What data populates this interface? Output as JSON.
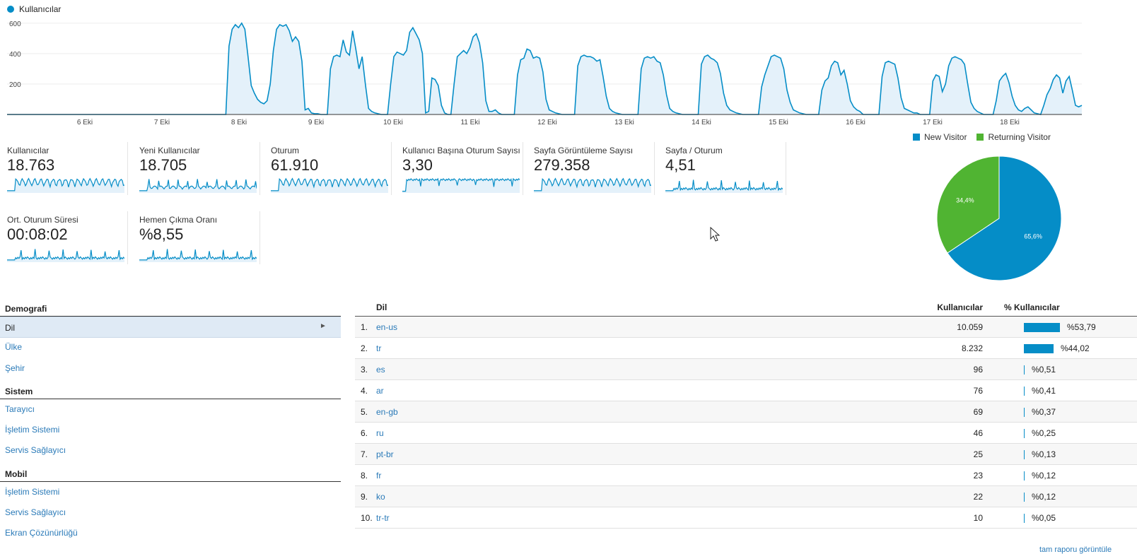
{
  "main_chart": {
    "legend_label": "Kullanıcılar",
    "y_ticks": [
      "600",
      "400",
      "200"
    ],
    "x_ticks": [
      "6 Eki",
      "7 Eki",
      "8 Eki",
      "9 Eki",
      "10 Eki",
      "11 Eki",
      "12 Eki",
      "13 Eki",
      "14 Eki",
      "15 Eki",
      "16 Eki",
      "17 Eki",
      "18 Eki"
    ],
    "series_color": "#058dc7",
    "fill_color": "#e4f1fa"
  },
  "chart_data": {
    "type": "area",
    "xlabel": "",
    "ylabel": "",
    "ylim": [
      0,
      650
    ],
    "series": [
      {
        "values": [
          0,
          0,
          0,
          0,
          0,
          0,
          0,
          0,
          0,
          0,
          0,
          0,
          0,
          0,
          0,
          0,
          0,
          0,
          0,
          0,
          0,
          0,
          0,
          0,
          0,
          0,
          0,
          0,
          0,
          0,
          0,
          0,
          0,
          0,
          0,
          0,
          0,
          0,
          0,
          0,
          0,
          0,
          0,
          0,
          0,
          0,
          0,
          0,
          0,
          0,
          0,
          0,
          0,
          0,
          0,
          0,
          0,
          0,
          0,
          0,
          0,
          0,
          0,
          0,
          0,
          0,
          0,
          0,
          0,
          0,
          450,
          560,
          590,
          570,
          600,
          560,
          380,
          190,
          140,
          100,
          80,
          70,
          90,
          200,
          420,
          560,
          590,
          580,
          590,
          550,
          480,
          510,
          480,
          350,
          30,
          40,
          10,
          5,
          5,
          0,
          0,
          0,
          300,
          380,
          390,
          380,
          490,
          410,
          390,
          550,
          430,
          300,
          380,
          200,
          40,
          20,
          10,
          5,
          0,
          0,
          0,
          200,
          380,
          410,
          400,
          390,
          420,
          540,
          570,
          530,
          490,
          400,
          10,
          20,
          240,
          230,
          190,
          60,
          10,
          0,
          0,
          200,
          380,
          400,
          420,
          400,
          440,
          510,
          530,
          470,
          340,
          90,
          20,
          20,
          30,
          10,
          0,
          0,
          0,
          0,
          0,
          260,
          360,
          370,
          430,
          420,
          370,
          380,
          370,
          280,
          100,
          30,
          20,
          10,
          5,
          0,
          0,
          0,
          0,
          0,
          320,
          380,
          390,
          380,
          380,
          370,
          350,
          360,
          250,
          120,
          40,
          20,
          10,
          5,
          0,
          0,
          0,
          0,
          0,
          0,
          300,
          370,
          380,
          370,
          380,
          350,
          340,
          260,
          130,
          40,
          20,
          10,
          5,
          0,
          0,
          0,
          0,
          0,
          0,
          330,
          380,
          390,
          370,
          360,
          340,
          270,
          140,
          60,
          30,
          20,
          10,
          5,
          0,
          0,
          0,
          0,
          0,
          0,
          180,
          260,
          320,
          380,
          390,
          380,
          370,
          300,
          160,
          80,
          30,
          20,
          10,
          5,
          0,
          0,
          0,
          0,
          0,
          160,
          220,
          240,
          320,
          350,
          340,
          260,
          290,
          200,
          90,
          50,
          30,
          20,
          0,
          0,
          0,
          0,
          0,
          0,
          250,
          340,
          350,
          340,
          330,
          240,
          110,
          40,
          30,
          20,
          10,
          10,
          0,
          0,
          0,
          0,
          220,
          260,
          250,
          150,
          200,
          320,
          370,
          380,
          370,
          360,
          330,
          200,
          80,
          40,
          20,
          10,
          0,
          0,
          0,
          0,
          90,
          220,
          250,
          270,
          210,
          120,
          60,
          30,
          20,
          40,
          50,
          30,
          10,
          5,
          0,
          60,
          130,
          170,
          230,
          260,
          240,
          140,
          220,
          250,
          160,
          60,
          50,
          60
        ]
      }
    ]
  },
  "metrics": [
    {
      "label": "Kullanıcılar",
      "value": "18.763"
    },
    {
      "label": "Yeni Kullanıcılar",
      "value": "18.705"
    },
    {
      "label": "Oturum",
      "value": "61.910"
    },
    {
      "label": "Kullanıcı Başına Oturum Sayısı",
      "value": "3,30"
    },
    {
      "label": "Sayfa Görüntüleme Sayısı",
      "value": "279.358"
    },
    {
      "label": "Sayfa / Oturum",
      "value": "4,51"
    },
    {
      "label": "Ort. Oturum Süresi",
      "value": "00:08:02"
    },
    {
      "label": "Hemen Çıkma Oranı",
      "value": "%8,55"
    }
  ],
  "pie": {
    "legend": [
      {
        "label": "New Visitor",
        "color": "#058dc7"
      },
      {
        "label": "Returning Visitor",
        "color": "#50b432"
      }
    ],
    "slices": [
      {
        "label": "65,6%",
        "value": 65.6,
        "color": "#058dc7"
      },
      {
        "label": "34,4%",
        "value": 34.4,
        "color": "#50b432"
      }
    ]
  },
  "nav": {
    "section_demografi": "Demografi",
    "dil": "Dil",
    "ulke": "Ülke",
    "sehir": "Şehir",
    "section_sistem": "Sistem",
    "tarayici": "Tarayıcı",
    "isletim_sistemi": "İşletim Sistemi",
    "servis_saglayici": "Servis Sağlayıcı",
    "section_mobil": "Mobil",
    "mobil_isletim": "İşletim Sistemi",
    "mobil_servis": "Servis Sağlayıcı",
    "ekran": "Ekran Çözünürlüğü"
  },
  "table": {
    "col_dil": "Dil",
    "col_users": "Kullanıcılar",
    "col_pct": "% Kullanıcılar",
    "rows": [
      {
        "idx": "1.",
        "lang": "en-us",
        "users": "10.059",
        "pct": "%53,79",
        "share": 53.79
      },
      {
        "idx": "2.",
        "lang": "tr",
        "users": "8.232",
        "pct": "%44,02",
        "share": 44.02
      },
      {
        "idx": "3.",
        "lang": "es",
        "users": "96",
        "pct": "%0,51",
        "share": 0.51
      },
      {
        "idx": "4.",
        "lang": "ar",
        "users": "76",
        "pct": "%0,41",
        "share": 0.41
      },
      {
        "idx": "5.",
        "lang": "en-gb",
        "users": "69",
        "pct": "%0,37",
        "share": 0.37
      },
      {
        "idx": "6.",
        "lang": "ru",
        "users": "46",
        "pct": "%0,25",
        "share": 0.25
      },
      {
        "idx": "7.",
        "lang": "pt-br",
        "users": "25",
        "pct": "%0,13",
        "share": 0.13
      },
      {
        "idx": "8.",
        "lang": "fr",
        "users": "23",
        "pct": "%0,12",
        "share": 0.12
      },
      {
        "idx": "9.",
        "lang": "ko",
        "users": "22",
        "pct": "%0,12",
        "share": 0.12
      },
      {
        "idx": "10.",
        "lang": "tr-tr",
        "users": "10",
        "pct": "%0,05",
        "share": 0.05
      }
    ],
    "footer_link": "tam raporu görüntüle"
  }
}
